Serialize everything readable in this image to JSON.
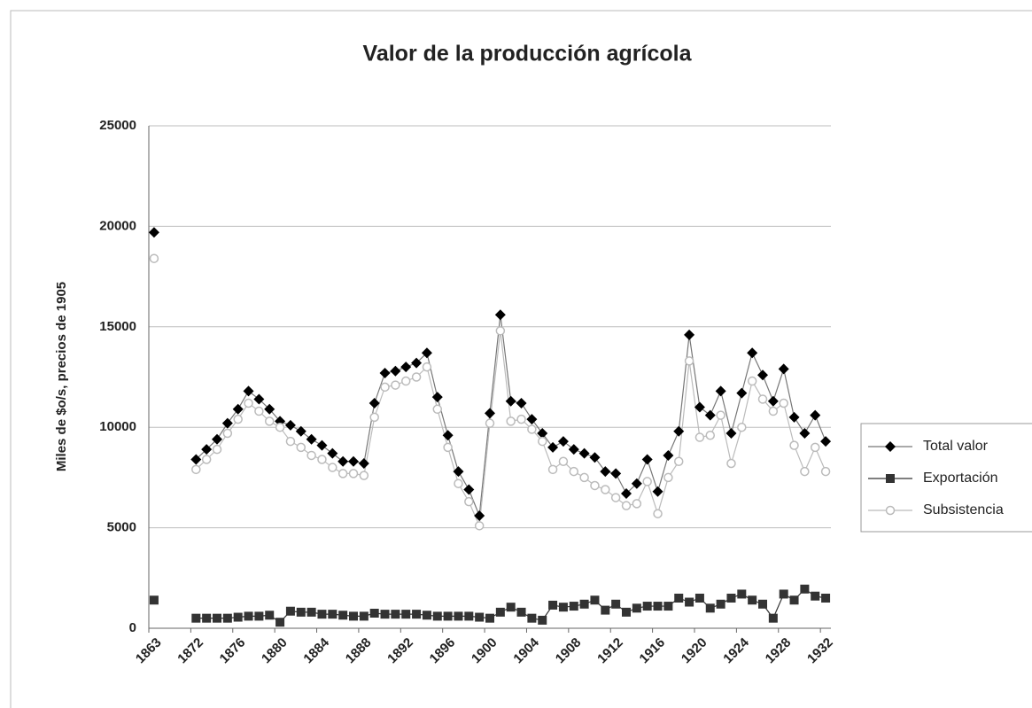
{
  "chart_data": {
    "type": "line",
    "title": "Valor de la producción agrícola",
    "ylabel": "Miles de $o/s, precios de 1905",
    "categories": [
      "1863",
      null,
      null,
      null,
      "1872",
      null,
      null,
      null,
      "1876",
      null,
      null,
      null,
      "1880",
      null,
      null,
      null,
      "1884",
      null,
      null,
      null,
      "1888",
      null,
      null,
      null,
      "1892",
      null,
      null,
      null,
      "1896",
      null,
      null,
      null,
      "1900",
      null,
      null,
      null,
      "1904",
      null,
      null,
      null,
      "1908",
      null,
      null,
      null,
      "1912",
      null,
      null,
      null,
      "1916",
      null,
      null,
      null,
      "1920",
      null,
      null,
      null,
      "1924",
      null,
      null,
      null,
      "1928",
      null,
      null,
      null,
      "1932"
    ],
    "series": [
      {
        "name": "Total  valor",
        "color": "#000000",
        "marker": "diamond",
        "values": [
          19700,
          null,
          null,
          null,
          8400,
          8900,
          9400,
          10200,
          10900,
          11800,
          11400,
          10900,
          10300,
          10100,
          9800,
          9400,
          9100,
          8700,
          8300,
          8300,
          8200,
          11200,
          12700,
          12800,
          13000,
          13200,
          13700,
          11500,
          9600,
          7800,
          6900,
          5600,
          10700,
          15600,
          11300,
          11200,
          10400,
          9700,
          9000,
          9300,
          8900,
          8700,
          8500,
          7800,
          7700,
          6700,
          7200,
          8400,
          6800,
          8600,
          9800,
          14600,
          11000,
          10600,
          11800,
          9700,
          11700,
          13700,
          12600,
          11300,
          12900,
          10500,
          9700,
          10600,
          9300
        ]
      },
      {
        "name": "Exportación",
        "color": "#333333",
        "marker": "square",
        "values": [
          1400,
          null,
          null,
          null,
          500,
          500,
          500,
          500,
          550,
          600,
          600,
          650,
          300,
          850,
          800,
          800,
          700,
          700,
          650,
          600,
          600,
          750,
          700,
          700,
          700,
          700,
          650,
          600,
          600,
          600,
          600,
          550,
          500,
          800,
          1050,
          800,
          500,
          400,
          1150,
          1050,
          1100,
          1200,
          1400,
          900,
          1200,
          800,
          1000,
          1100,
          1100,
          1100,
          1500,
          1300,
          1500,
          1000,
          1200,
          1500,
          1700,
          1400,
          1200,
          500,
          1700,
          1400,
          1950,
          1600,
          1500
        ]
      },
      {
        "name": "Subsistencia",
        "color": "#bbbbbb",
        "marker": "circle",
        "values": [
          18400,
          null,
          null,
          null,
          7900,
          8400,
          8900,
          9700,
          10400,
          11200,
          10800,
          10300,
          10000,
          9300,
          9000,
          8600,
          8400,
          8000,
          7700,
          7700,
          7600,
          10500,
          12000,
          12100,
          12300,
          12500,
          13000,
          10900,
          9000,
          7200,
          6300,
          5100,
          10200,
          14800,
          10300,
          10400,
          9900,
          9300,
          7900,
          8300,
          7800,
          7500,
          7100,
          6900,
          6500,
          6100,
          6200,
          7300,
          5700,
          7500,
          8300,
          13300,
          9500,
          9600,
          10600,
          8200,
          10000,
          12300,
          11400,
          10800,
          11200,
          9100,
          7800,
          9000,
          7800
        ]
      }
    ],
    "ylim": [
      0,
      25000
    ],
    "yticks": [
      0,
      5000,
      10000,
      15000,
      20000,
      25000
    ],
    "grid": true,
    "legend": "right"
  }
}
